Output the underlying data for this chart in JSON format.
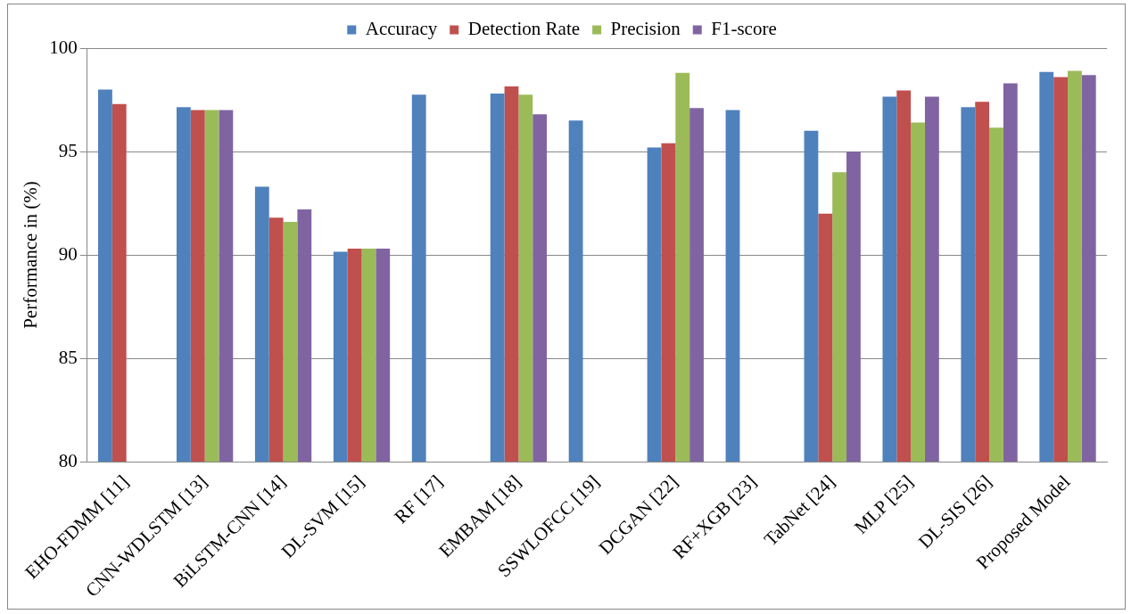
{
  "chart_data": {
    "type": "bar",
    "ylabel": "Performance in (%)",
    "categories": [
      "EHO-FDMM [11]",
      "CNN-WDLSTM [13]",
      "BiLSTM-CNN [14]",
      "DL-SVM [15]",
      "RF [17]",
      "EMBAM [18]",
      "SSWLOFCC [19]",
      "DCGAN [22]",
      "RF+XGB [23]",
      "TabNet [24]",
      "MLP [25]",
      "DL-SIS [26]",
      "Proposed Model"
    ],
    "series": [
      {
        "name": "Accuracy",
        "color": "#4f81bd",
        "values": [
          98.0,
          97.15,
          93.3,
          90.15,
          97.75,
          97.8,
          96.5,
          95.2,
          97.0,
          96.0,
          97.65,
          97.15,
          98.85
        ]
      },
      {
        "name": "Detection Rate",
        "color": "#c0504d",
        "values": [
          97.3,
          97.0,
          91.8,
          90.3,
          null,
          98.15,
          null,
          95.4,
          null,
          92.0,
          97.95,
          97.4,
          98.6
        ]
      },
      {
        "name": "Precision",
        "color": "#9bbb59",
        "values": [
          null,
          97.0,
          91.6,
          90.3,
          null,
          97.75,
          null,
          98.8,
          null,
          94.0,
          96.4,
          96.15,
          98.9
        ]
      },
      {
        "name": "F1-score",
        "color": "#8064a2",
        "values": [
          null,
          97.0,
          92.2,
          90.3,
          null,
          96.8,
          null,
          97.1,
          null,
          95.0,
          97.65,
          98.3,
          98.7
        ]
      }
    ],
    "ylim": [
      80,
      100
    ],
    "yticks": [
      80,
      85,
      90,
      95,
      100
    ],
    "grid": "y",
    "legend": "top"
  }
}
